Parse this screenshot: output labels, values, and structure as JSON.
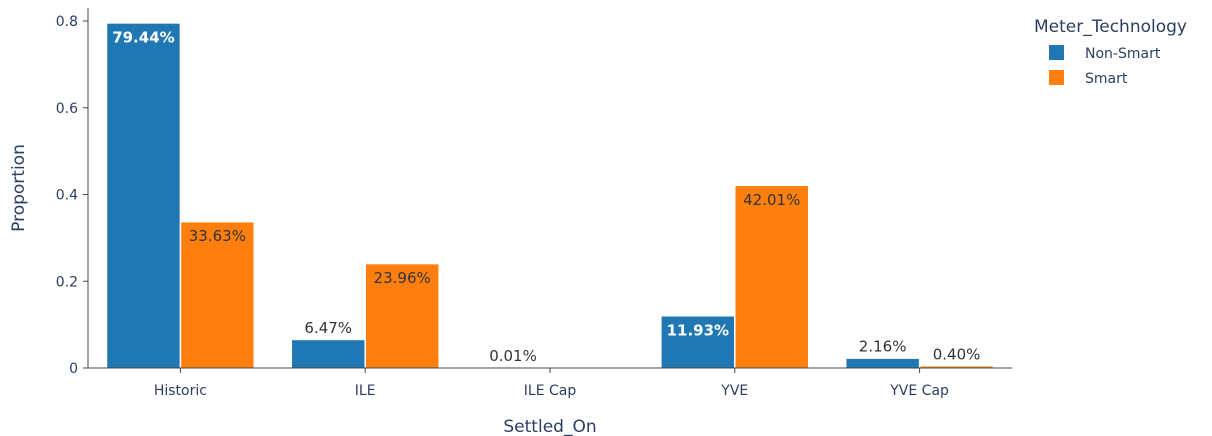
{
  "chart_data": {
    "type": "bar",
    "title": "",
    "xlabel": "Settled_On",
    "ylabel": "Proportion",
    "ylim": [
      0,
      0.83
    ],
    "yticks": [
      0,
      0.2,
      0.4,
      0.6,
      0.8
    ],
    "ytick_labels": [
      "0",
      "0.2",
      "0.4",
      "0.6",
      "0.8"
    ],
    "grid": false,
    "legend_position": "top-right",
    "legend_title": "Meter_Technology",
    "categories": [
      "Historic",
      "ILE",
      "ILE Cap",
      "YVE",
      "YVE Cap"
    ],
    "series": [
      {
        "name": "Non-Smart",
        "color": "#1f77b4",
        "values": [
          0.7944,
          0.0647,
          0.0001,
          0.1193,
          0.0216
        ],
        "labels": [
          "79.44%",
          "6.47%",
          "0.01%",
          "11.93%",
          "2.16%"
        ]
      },
      {
        "name": "Smart",
        "color": "#ff7f0e",
        "values": [
          0.3363,
          0.2396,
          null,
          0.4201,
          0.004
        ],
        "labels": [
          "33.63%",
          "23.96%",
          "",
          "42.01%",
          "0.40%"
        ]
      }
    ]
  }
}
